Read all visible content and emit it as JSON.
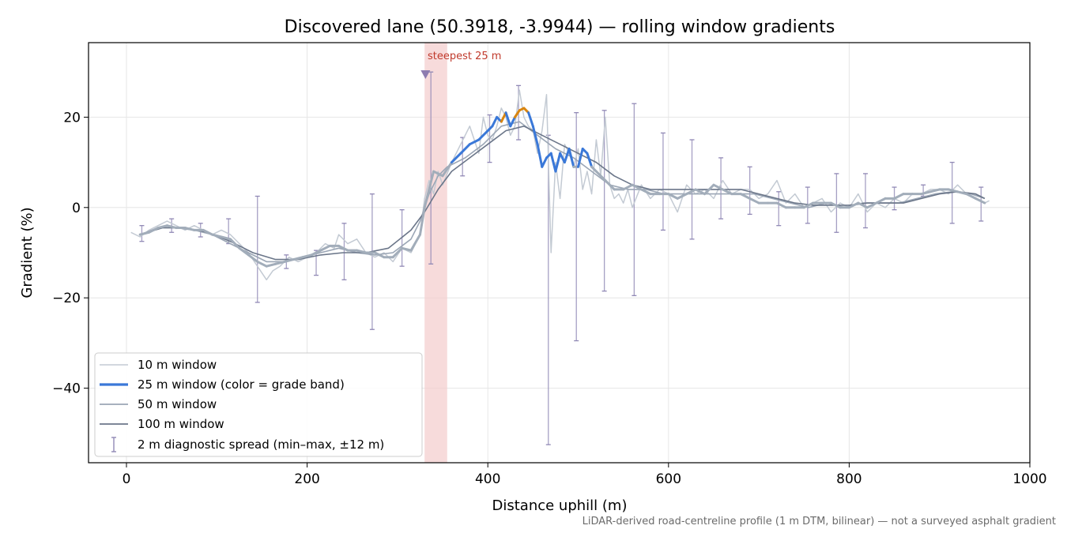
{
  "chart_data": {
    "type": "line",
    "title": "Discovered lane (50.3918, -3.9944) — rolling window gradients",
    "xlabel": "Distance uphill (m)",
    "ylabel": "Gradient (%)",
    "xlim": [
      -42,
      1000
    ],
    "ylim": [
      -56.5,
      36.5
    ],
    "xticks": [
      0,
      200,
      400,
      600,
      800,
      1000
    ],
    "yticks": [
      -40,
      -20,
      0,
      20
    ],
    "ytick_labels": [
      "−40",
      "−20",
      "0",
      "20"
    ],
    "grid": true,
    "legend_position": "lower-left",
    "footnote": "LiDAR-derived road-centreline profile (1 m DTM, bilinear) — not a surveyed asphalt gradient",
    "highlight": {
      "label": "steepest 25 m",
      "x_start": 330,
      "x_end": 355,
      "marker_x": 331,
      "marker_y": 29.5,
      "color": "#f4cccc",
      "label_color": "#c0392b"
    },
    "colors": {
      "w10": "#c3cad3",
      "w25_base": "#a2adba",
      "w25_moderate": "#3a78d8",
      "w25_steep": "#d9850f",
      "w50": "#9ba6b5",
      "w100": "#6b7689",
      "errorbar": "#9088b5"
    },
    "grade_bands": [
      {
        "name": "moderate",
        "min": 10,
        "max": 20
      },
      {
        "name": "steep",
        "min": 20,
        "max": 30
      }
    ],
    "legend": [
      {
        "label": "10 m window"
      },
      {
        "label": "25 m window (color = grade band)"
      },
      {
        "label": "50 m window"
      },
      {
        "label": "100 m window"
      },
      {
        "label": "2 m diagnostic spread (min–max, ±12 m)"
      }
    ],
    "series": [
      {
        "name": "10 m window",
        "x": [
          5,
          15,
          25,
          35,
          45,
          55,
          65,
          75,
          85,
          95,
          105,
          115,
          125,
          135,
          145,
          155,
          162,
          170,
          180,
          190,
          200,
          210,
          220,
          230,
          235,
          245,
          255,
          265,
          275,
          285,
          295,
          305,
          315,
          325,
          330,
          335,
          340,
          345,
          350,
          360,
          370,
          380,
          390,
          395,
          400,
          405,
          410,
          415,
          420,
          425,
          430,
          435,
          440,
          445,
          450,
          455,
          460,
          465,
          470,
          475,
          480,
          485,
          490,
          495,
          500,
          505,
          510,
          515,
          520,
          525,
          530,
          535,
          540,
          545,
          550,
          555,
          560,
          570,
          580,
          590,
          600,
          610,
          620,
          630,
          640,
          650,
          660,
          670,
          680,
          690,
          700,
          710,
          720,
          730,
          740,
          750,
          760,
          770,
          780,
          790,
          800,
          810,
          820,
          830,
          840,
          850,
          860,
          870,
          880,
          890,
          900,
          910,
          920,
          930,
          940,
          950,
          955
        ],
        "y": [
          -5.5,
          -6.5,
          -5,
          -4,
          -3,
          -4,
          -5,
          -4,
          -5,
          -6,
          -5,
          -6,
          -8,
          -10,
          -13,
          -16,
          -14,
          -13,
          -11,
          -12,
          -11,
          -10,
          -8,
          -9,
          -6,
          -8,
          -7,
          -10,
          -11,
          -10,
          -12,
          -9,
          -10,
          -6,
          2,
          6,
          3,
          8,
          5,
          10,
          14,
          18,
          12,
          20,
          16,
          15,
          18,
          22,
          20,
          16,
          18,
          26,
          20,
          18,
          17,
          12,
          17,
          25,
          -10,
          10,
          2,
          14,
          12,
          9,
          13,
          4,
          8,
          3,
          15,
          7,
          20,
          5,
          2,
          3,
          1,
          4,
          0,
          5,
          2,
          4,
          3,
          -1,
          5,
          3,
          4,
          2,
          6,
          3,
          4,
          4,
          2,
          3,
          6,
          1,
          3,
          0,
          1,
          2,
          -1,
          1,
          0,
          3,
          -1,
          1,
          0,
          2,
          1,
          3,
          3,
          4,
          4,
          3,
          5,
          3,
          2,
          1,
          1.5
        ]
      },
      {
        "name": "25 m window (color = grade band)",
        "x": [
          15,
          25,
          35,
          45,
          55,
          65,
          75,
          85,
          95,
          105,
          115,
          125,
          135,
          145,
          155,
          165,
          175,
          185,
          195,
          205,
          215,
          225,
          235,
          245,
          255,
          265,
          275,
          285,
          295,
          305,
          315,
          325,
          330,
          340,
          350,
          360,
          370,
          380,
          390,
          400,
          405,
          410,
          415,
          420,
          425,
          430,
          435,
          440,
          445,
          450,
          455,
          460,
          465,
          470,
          475,
          480,
          485,
          490,
          495,
          500,
          505,
          510,
          515,
          520,
          530,
          540,
          550,
          560,
          570,
          580,
          590,
          600,
          610,
          620,
          630,
          640,
          650,
          660,
          670,
          680,
          690,
          700,
          710,
          720,
          730,
          740,
          750,
          760,
          770,
          780,
          790,
          800,
          810,
          820,
          830,
          840,
          850,
          860,
          870,
          880,
          890,
          900,
          910,
          920,
          930,
          940,
          950
        ],
        "y": [
          -6,
          -5.5,
          -4.5,
          -4,
          -4.5,
          -4.5,
          -5,
          -5,
          -6,
          -6.5,
          -7,
          -9,
          -10.5,
          -12,
          -13,
          -12.5,
          -12,
          -11.5,
          -11,
          -10.5,
          -9.5,
          -8.5,
          -8.5,
          -9.5,
          -9.5,
          -10,
          -10,
          -11,
          -11,
          -9,
          -9.5,
          -6,
          0,
          8,
          7,
          10,
          12,
          14,
          15,
          17,
          18,
          20,
          19,
          21,
          18,
          20,
          21.5,
          22,
          21,
          18,
          14,
          9,
          11,
          12,
          8,
          12,
          10,
          13,
          9,
          9,
          13,
          12,
          9,
          8,
          6,
          4,
          4,
          5,
          4,
          3,
          3,
          3,
          2,
          3,
          4,
          3,
          5,
          4,
          3,
          3,
          2,
          1,
          1,
          1,
          0,
          0,
          0,
          1,
          1,
          1,
          0,
          0,
          1,
          0,
          1,
          2,
          2,
          3,
          3,
          3,
          3.5,
          4,
          4,
          3.5,
          3,
          2,
          1
        ]
      },
      {
        "name": "50 m window",
        "x": [
          15,
          35,
          55,
          75,
          95,
          115,
          135,
          155,
          175,
          195,
          215,
          235,
          255,
          275,
          295,
          315,
          325,
          335,
          345,
          355,
          375,
          395,
          415,
          435,
          455,
          475,
          495,
          515,
          535,
          555,
          575,
          595,
          615,
          635,
          655,
          675,
          695,
          715,
          735,
          755,
          775,
          795,
          815,
          835,
          855,
          875,
          895,
          915,
          935,
          950
        ],
        "y": [
          -6,
          -4.5,
          -4.5,
          -5,
          -6,
          -8,
          -10,
          -12,
          -12,
          -11,
          -10,
          -9,
          -10,
          -10.5,
          -10,
          -7,
          -3,
          3,
          7,
          9,
          11,
          14,
          18,
          19,
          16,
          13,
          11,
          8,
          5,
          4,
          4,
          3,
          3,
          3,
          3,
          3,
          3,
          2,
          1,
          0,
          1,
          0,
          1,
          1,
          1,
          2,
          3,
          3.5,
          3,
          2
        ]
      },
      {
        "name": "100 m window",
        "x": [
          15,
          40,
          65,
          90,
          115,
          140,
          165,
          190,
          215,
          240,
          265,
          290,
          315,
          330,
          345,
          360,
          380,
          400,
          420,
          440,
          460,
          480,
          500,
          520,
          540,
          560,
          580,
          600,
          620,
          640,
          660,
          680,
          700,
          720,
          740,
          760,
          780,
          800,
          820,
          840,
          860,
          880,
          900,
          920,
          940,
          950
        ],
        "y": [
          -6,
          -4.5,
          -4.5,
          -5.5,
          -7.5,
          -10,
          -11.5,
          -11.5,
          -10.5,
          -10,
          -10,
          -9,
          -5,
          -1,
          4,
          8,
          11,
          14,
          17,
          18,
          16,
          14,
          12,
          10,
          7,
          5,
          4,
          4,
          4,
          4,
          4,
          4,
          3,
          2,
          1,
          0.5,
          0.5,
          0.5,
          1,
          1,
          1,
          2,
          3,
          3.5,
          3,
          2
        ]
      }
    ],
    "errorbars": {
      "name": "2 m diagnostic spread (min–max, ±12 m)",
      "x": [
        17,
        50,
        82,
        113,
        145,
        177,
        210,
        241,
        272,
        305,
        337,
        372,
        402,
        434,
        467,
        498,
        529,
        562,
        594,
        626,
        658,
        690,
        722,
        754,
        786,
        818,
        850,
        882,
        914,
        946
      ],
      "y": [
        -6,
        -4,
        -5,
        -6.5,
        -11,
        -12,
        -11.5,
        -10,
        -10.5,
        -8,
        -6.5,
        13,
        15,
        20,
        5,
        6,
        4,
        4,
        3,
        3,
        4,
        4,
        2,
        1,
        1.5,
        1,
        2,
        4,
        3,
        2
      ],
      "ymin": [
        -7.5,
        -5.5,
        -6.5,
        -8,
        -21,
        -13.5,
        -15,
        -16,
        -27,
        -13,
        -12.5,
        7,
        10,
        15,
        -52.5,
        -29.5,
        -18.5,
        -19.5,
        -5,
        -7,
        -2.5,
        -1.5,
        -4,
        -3.5,
        -5.5,
        -4.5,
        -0.5,
        2.5,
        -3.5,
        -3
      ],
      "ymax": [
        -4,
        -2.5,
        -3.5,
        -2.5,
        2.5,
        -10.5,
        -9.5,
        -3.5,
        3,
        -0.5,
        30,
        15.5,
        20.5,
        27,
        16,
        21,
        21.5,
        23,
        16.5,
        15,
        11,
        9,
        3.5,
        4.5,
        7.5,
        7.5,
        4.5,
        5,
        10,
        4.5
      ]
    }
  }
}
